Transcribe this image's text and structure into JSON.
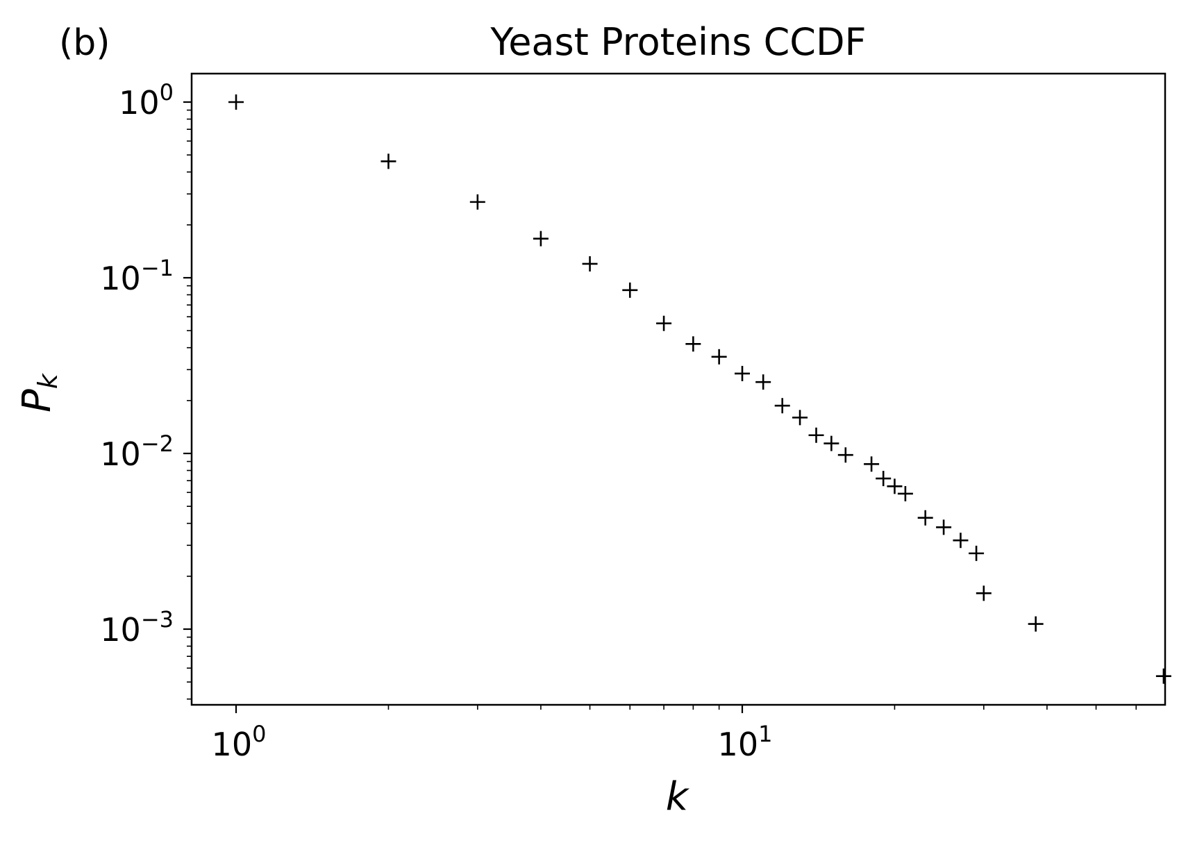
{
  "panel_label": "(b)",
  "chart_data": {
    "type": "scatter",
    "title": "Yeast Proteins CCDF",
    "xlabel": "k",
    "ylabel": "P",
    "ylabel_subscript": "k",
    "xscale": "log",
    "yscale": "log",
    "xlim": [
      0.83,
      80
    ],
    "ylim": [
      0.00038,
      1.5
    ],
    "grid": false,
    "marker": "+",
    "marker_color": "#000000",
    "x_tick_labels": [
      {
        "value": 1,
        "base": "10",
        "exp": "0"
      },
      {
        "value": 10,
        "base": "10",
        "exp": "1"
      }
    ],
    "y_tick_labels": [
      {
        "value": 1,
        "base": "10",
        "exp": "0"
      },
      {
        "value": 0.1,
        "base": "10",
        "exp": "−1"
      },
      {
        "value": 0.01,
        "base": "10",
        "exp": "−2"
      },
      {
        "value": 0.001,
        "base": "10",
        "exp": "−3"
      }
    ],
    "x": [
      1,
      2,
      3,
      4,
      5,
      6,
      7,
      8,
      9,
      10,
      11,
      12,
      13,
      14,
      15,
      16,
      18,
      19,
      20,
      21,
      23,
      25,
      27,
      29,
      30,
      38,
      68
    ],
    "y": [
      1.0,
      0.46,
      0.27,
      0.167,
      0.12,
      0.085,
      0.055,
      0.042,
      0.0355,
      0.0285,
      0.0255,
      0.0187,
      0.016,
      0.0127,
      0.0114,
      0.0098,
      0.0087,
      0.0072,
      0.0065,
      0.0059,
      0.0043,
      0.0038,
      0.0032,
      0.0027,
      0.0016,
      0.00107,
      0.00054
    ]
  }
}
